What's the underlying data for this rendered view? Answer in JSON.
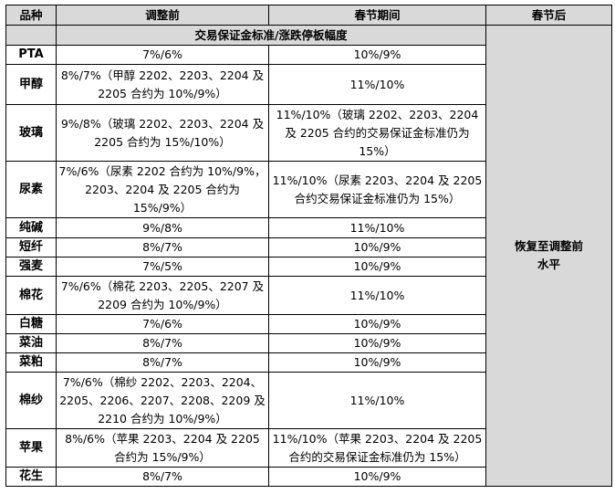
{
  "headers": {
    "variety": "品种",
    "before": "调整前",
    "during": "春节期间",
    "after": "春节后"
  },
  "subheader": "交易保证金标准/涨跌停板幅度",
  "after_note": "恢复至调整前水平",
  "rows": [
    {
      "name": "PTA",
      "before": "7%/6%",
      "during": "10%/9%"
    },
    {
      "name": "甲醇",
      "before": "8%/7%（甲醇 2202、2203、2204 及 2205 合约为 10%/9%）",
      "during": "11%/10%"
    },
    {
      "name": "玻璃",
      "before": "9%/8%（玻璃 2202、2203、2204 及 2205 合约为 15%/10%）",
      "during": "11%/10%（玻璃 2202、2203、2204 及 2205 合约的交易保证金标准仍为 15%）"
    },
    {
      "name": "尿素",
      "before": "7%/6%（尿素 2202 合约为 10%/9%，2203、2204 及 2205 合约为 15%/9%）",
      "during": "11%/10%（尿素 2203、2204 及 2205 合约交易保证金标准仍为 15%）"
    },
    {
      "name": "纯碱",
      "before": "9%/8%",
      "during": "11%/10%"
    },
    {
      "name": "短纤",
      "before": "8%/7%",
      "during": "10%/9%"
    },
    {
      "name": "强麦",
      "before": "7%/5%",
      "during": "10%/9%"
    },
    {
      "name": "棉花",
      "before": "7%/6%（棉花 2203、2205、2207 及 2209 合约为 10%/9%）",
      "during": "11%/10%"
    },
    {
      "name": "白糖",
      "before": "7%/6%",
      "during": "10%/9%"
    },
    {
      "name": "菜油",
      "before": "8%/7%",
      "during": "10%/9%"
    },
    {
      "name": "菜粕",
      "before": "8%/7%",
      "during": "10%/9%"
    },
    {
      "name": "棉纱",
      "before": "7%/6%（棉纱 2202、2203、2204、2205、2206、2207、2208、2209 及 2210 合约为 10%/9%）",
      "during": "11%/10%"
    },
    {
      "name": "苹果",
      "before": "8%/6%（苹果 2203、2204 及 2205 合约为 15%/9%）",
      "during": "11%/10%（苹果 2203、2204 及 2205 合约的交易保证金标准仍为 15%）"
    },
    {
      "name": "花生",
      "before": "8%/7%",
      "during": "10%/9%"
    }
  ]
}
